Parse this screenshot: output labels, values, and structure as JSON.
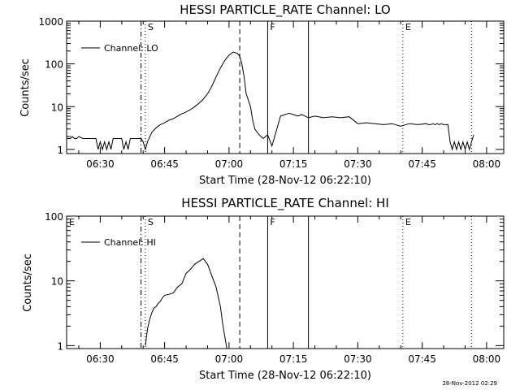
{
  "chart_data": [
    {
      "type": "line",
      "title": "HESSI PARTICLE_RATE Channel: LO",
      "xlabel": "Start Time (28-Nov-12 06:22:10)",
      "ylabel": "Counts/sec",
      "y_scale": "log",
      "xlim": [
        "06:22:10",
        "08:04:00"
      ],
      "ylim": [
        0.8,
        1000
      ],
      "x_tick_labels": [
        "06:30",
        "06:45",
        "07:00",
        "07:15",
        "07:30",
        "07:45",
        "08:00"
      ],
      "y_tick_labels": [
        "1",
        "10",
        "100",
        "1000"
      ],
      "legend": {
        "placement": "top-left",
        "entries": [
          "Channel: LO"
        ]
      },
      "markers": [
        {
          "time": "06:39:30",
          "style": "dash-dot"
        },
        {
          "time": "06:40:30",
          "style": "dotted",
          "label": "S"
        },
        {
          "time": "07:02:30",
          "style": "dashed"
        },
        {
          "time": "07:09:00",
          "style": "solid",
          "label": "F"
        },
        {
          "time": "07:18:30",
          "style": "solid"
        },
        {
          "time": "07:40:30",
          "style": "dotted",
          "label": "E"
        },
        {
          "time": "07:56:30",
          "style": "dotted"
        }
      ],
      "series": [
        {
          "name": "Channel: LO",
          "x": [
            "06:22:10",
            "06:23:00",
            "06:23:30",
            "06:24:00",
            "06:24:30",
            "06:25:00",
            "06:26:00",
            "06:28:00",
            "06:29:00",
            "06:29:30",
            "06:30:00",
            "06:30:30",
            "06:31:00",
            "06:31:30",
            "06:32:00",
            "06:32:30",
            "06:33:00",
            "06:33:30",
            "06:34:00",
            "06:35:00",
            "06:35:30",
            "06:36:00",
            "06:36:30",
            "06:37:00",
            "06:37:30",
            "06:38:00",
            "06:38:30",
            "06:39:00",
            "06:39:30",
            "06:40:00",
            "06:40:30",
            "06:41:00",
            "06:42:00",
            "06:43:00",
            "06:44:00",
            "06:45:00",
            "06:46:00",
            "06:47:00",
            "06:48:00",
            "06:49:00",
            "06:50:00",
            "06:51:00",
            "06:52:00",
            "06:53:00",
            "06:54:00",
            "06:55:00",
            "06:56:00",
            "06:57:00",
            "06:58:00",
            "06:59:00",
            "07:00:00",
            "07:01:00",
            "07:02:00",
            "07:02:30",
            "07:03:00",
            "07:03:30",
            "07:04:00",
            "07:05:00",
            "07:05:30",
            "07:06:00",
            "07:07:00",
            "07:08:00",
            "07:09:00",
            "07:10:00",
            "07:12:00",
            "07:14:00",
            "07:16:00",
            "07:17:00",
            "07:18:30",
            "07:20:00",
            "07:22:00",
            "07:24:00",
            "07:26:00",
            "07:28:00",
            "07:30:00",
            "07:32:00",
            "07:34:00",
            "07:36:00",
            "07:38:00",
            "07:40:00",
            "07:42:00",
            "07:44:00",
            "07:46:00",
            "07:46:30",
            "07:47:00",
            "07:47:30",
            "07:48:00",
            "07:48:30",
            "07:49:00",
            "07:49:30",
            "07:50:00",
            "07:50:30",
            "07:51:00",
            "07:51:30",
            "07:52:00",
            "07:52:30",
            "07:53:00",
            "07:53:30",
            "07:54:00",
            "07:54:30",
            "07:55:00",
            "07:55:30",
            "07:56:00",
            "07:56:30",
            "07:57:00"
          ],
          "y": [
            1.8,
            1.8,
            2.0,
            1.8,
            1.8,
            2.0,
            1.8,
            1.8,
            1.8,
            1.0,
            1.5,
            1.0,
            1.5,
            1.0,
            1.5,
            1.0,
            1.8,
            1.8,
            1.8,
            1.8,
            1.0,
            1.5,
            1.0,
            1.8,
            1.8,
            1.8,
            1.8,
            1.8,
            1.8,
            1.5,
            1.0,
            1.5,
            2.5,
            3.2,
            3.8,
            4.2,
            4.8,
            5.2,
            6.0,
            6.8,
            7.5,
            8.5,
            10,
            12,
            15,
            20,
            30,
            50,
            80,
            120,
            160,
            190,
            175,
            150,
            100,
            50,
            20,
            10,
            5,
            3,
            2.2,
            1.8,
            2.2,
            1.2,
            6.0,
            7.0,
            6.0,
            6.5,
            5.5,
            6.0,
            5.5,
            5.8,
            5.5,
            5.8,
            4.0,
            4.2,
            4.0,
            3.8,
            4.0,
            3.5,
            4.0,
            3.8,
            4.0,
            3.8,
            3.8,
            4.0,
            3.8,
            4.0,
            3.8,
            4.0,
            3.8,
            3.8,
            3.8,
            1.5,
            1.0,
            1.5,
            1.0,
            1.5,
            1.0,
            1.5,
            1.0,
            1.5,
            1.0,
            1.5,
            2.2
          ]
        }
      ]
    },
    {
      "type": "line",
      "title": "HESSI PARTICLE_RATE Channel: HI",
      "xlabel": "Start Time (28-Nov-12 06:22:10)",
      "ylabel": "Counts/sec",
      "y_scale": "log",
      "xlim": [
        "06:22:10",
        "08:04:00"
      ],
      "ylim": [
        0.9,
        100
      ],
      "x_tick_labels": [
        "06:30",
        "06:45",
        "07:00",
        "07:15",
        "07:30",
        "07:45",
        "08:00"
      ],
      "y_tick_labels": [
        "1",
        "10",
        "100"
      ],
      "legend": {
        "placement": "top-left",
        "entries": [
          "Channel: HI"
        ]
      },
      "markers": [
        {
          "time": "06:22:10",
          "style": "none",
          "label": "E"
        },
        {
          "time": "06:39:30",
          "style": "dash-dot"
        },
        {
          "time": "06:40:30",
          "style": "dotted",
          "label": "S"
        },
        {
          "time": "07:02:30",
          "style": "dashed"
        },
        {
          "time": "07:09:00",
          "style": "solid",
          "label": "F"
        },
        {
          "time": "07:18:30",
          "style": "solid"
        },
        {
          "time": "07:40:30",
          "style": "dotted",
          "label": "E"
        },
        {
          "time": "07:56:30",
          "style": "dotted"
        }
      ],
      "series": [
        {
          "name": "Channel: HI",
          "x": [
            "06:40:30",
            "06:41:00",
            "06:41:30",
            "06:42:00",
            "06:42:30",
            "06:43:00",
            "06:43:30",
            "06:44:00",
            "06:44:30",
            "06:45:00",
            "06:46:00",
            "06:47:00",
            "06:48:00",
            "06:49:00",
            "06:50:00",
            "06:51:00",
            "06:52:00",
            "06:53:00",
            "06:54:00",
            "06:55:00",
            "06:56:00",
            "06:57:00",
            "06:58:00",
            "06:58:30",
            "06:59:00",
            "06:59:30"
          ],
          "y": [
            1.0,
            1.8,
            2.5,
            3.2,
            3.8,
            4.0,
            4.5,
            4.8,
            5.5,
            6.0,
            6.2,
            6.5,
            8.0,
            9.0,
            13,
            15,
            18,
            20,
            22,
            18,
            12,
            8.0,
            4.0,
            2.2,
            1.4,
            0.9
          ]
        }
      ]
    }
  ],
  "footer": {
    "timestamp": "28-Nov-2012 02:29"
  }
}
